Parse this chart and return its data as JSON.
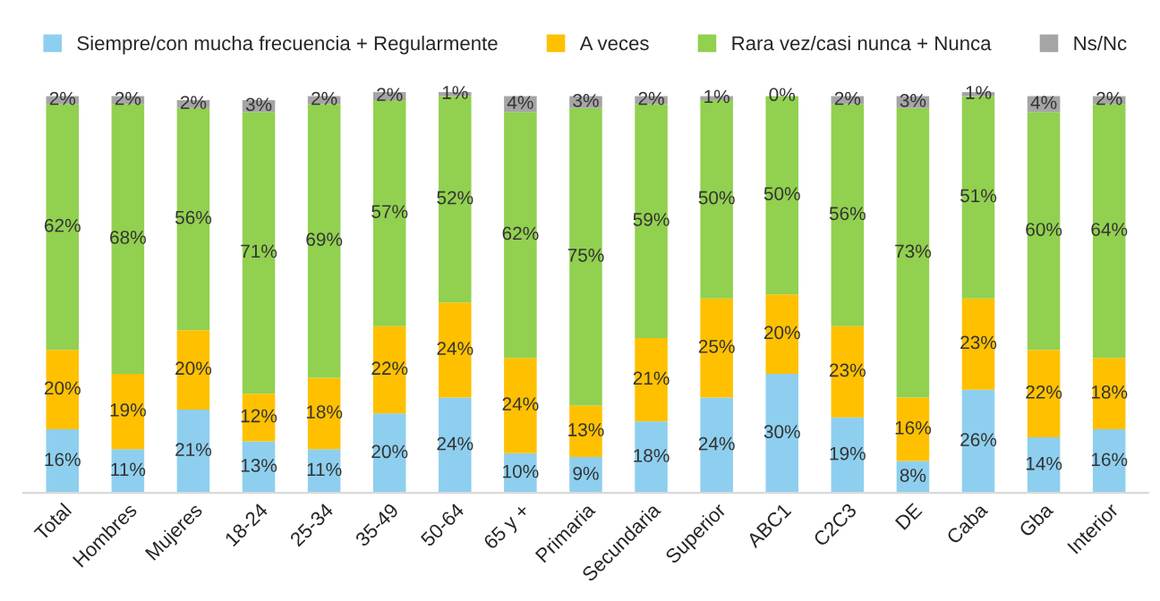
{
  "chart_data": {
    "type": "bar",
    "stacked": true,
    "legend": "top",
    "tick_labels": "x",
    "grid": false,
    "categories": [
      "Total",
      "Hombres",
      "Mujeres",
      "18-24",
      "25-34",
      "35-49",
      "50-64",
      "65 y +",
      "Primaria",
      "Secundaria",
      "Superior",
      "ABC1",
      "C2C3",
      "DE",
      "Caba",
      "Gba",
      "Interior"
    ],
    "series": [
      {
        "name": "Siempre/con mucha frecuencia + Regularmente",
        "color": "#8ecfef",
        "values": [
          16,
          11,
          21,
          13,
          11,
          20,
          24,
          10,
          9,
          18,
          24,
          30,
          19,
          8,
          26,
          14,
          16
        ],
        "value_labels": [
          "16%",
          "11%",
          "21%",
          "13%",
          "11%",
          "20%",
          "24%",
          "10%",
          "9%",
          "18%",
          "24%",
          "30%",
          "19%",
          "8%",
          "26%",
          "14%",
          "16%"
        ]
      },
      {
        "name": "A veces",
        "color": "#ffc000",
        "values": [
          20,
          19,
          20,
          12,
          18,
          22,
          24,
          24,
          13,
          21,
          25,
          20,
          23,
          16,
          23,
          22,
          18
        ],
        "value_labels": [
          "20%",
          "19%",
          "20%",
          "12%",
          "18%",
          "22%",
          "24%",
          "24%",
          "13%",
          "21%",
          "25%",
          "20%",
          "23%",
          "16%",
          "23%",
          "22%",
          "18%"
        ]
      },
      {
        "name": "Rara vez/casi nunca + Nunca",
        "color": "#92d050",
        "values": [
          62,
          68,
          56,
          71,
          69,
          57,
          52,
          62,
          75,
          59,
          50,
          50,
          56,
          73,
          51,
          60,
          64
        ],
        "value_labels": [
          "62%",
          "68%",
          "56%",
          "71%",
          "69%",
          "57%",
          "52%",
          "62%",
          "75%",
          "59%",
          "50%",
          "50%",
          "56%",
          "73%",
          "51%",
          "60%",
          "64%"
        ]
      },
      {
        "name": "Ns/Nc",
        "color": "#a5a5a5",
        "values": [
          2,
          2,
          2,
          3,
          2,
          2,
          1,
          4,
          3,
          2,
          1,
          0,
          2,
          3,
          1,
          4,
          2
        ],
        "value_labels": [
          "2%",
          "2%",
          "2%",
          "3%",
          "2%",
          "2%",
          "1%",
          "4%",
          "3%",
          "2%",
          "1%",
          "0%",
          "2%",
          "3%",
          "1%",
          "4%",
          "2%"
        ]
      }
    ]
  }
}
